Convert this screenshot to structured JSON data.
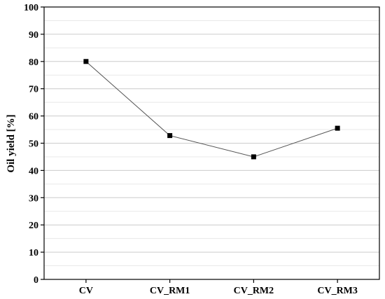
{
  "chart_data": {
    "type": "line",
    "categories": [
      "CV",
      "CV_RM1",
      "CV_RM2",
      "CV_RM3"
    ],
    "values": [
      80,
      52.8,
      45,
      55.5
    ],
    "xlabel": "",
    "ylabel": "Oil yield [%]",
    "ylim": [
      0,
      100
    ],
    "yticks": [
      0,
      10,
      20,
      30,
      40,
      50,
      60,
      70,
      80,
      90,
      100
    ],
    "grid": true,
    "minor_grid": true,
    "marker": "square",
    "legend": "none",
    "colors": {
      "line": "#555555",
      "marker": "#000000",
      "grid": "#cccccc",
      "minor_grid": "#e8e8e8",
      "axis": "#000000"
    }
  }
}
